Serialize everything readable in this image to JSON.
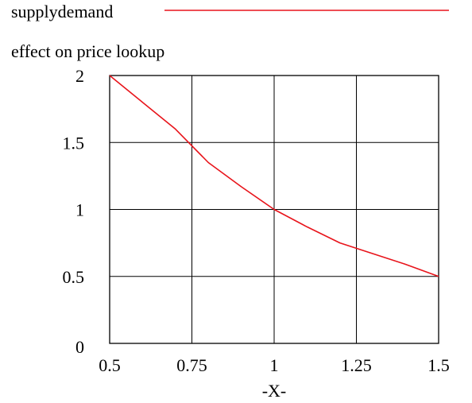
{
  "chart_data": {
    "type": "line",
    "title": "effect on price lookup",
    "xlabel": "-X-",
    "ylabel": "",
    "xlim": [
      0.5,
      1.5
    ],
    "ylim": [
      0,
      2
    ],
    "x_ticks": [
      0.5,
      0.75,
      1,
      1.25,
      1.5
    ],
    "x_tick_labels": [
      "0.5",
      "0.75",
      "1",
      "1.25",
      "1.5"
    ],
    "y_ticks": [
      0,
      0.5,
      1,
      1.5,
      2
    ],
    "y_tick_labels": [
      "0",
      "0.5",
      "1",
      "1.5",
      "2"
    ],
    "grid": true,
    "legend_position": "top",
    "series": [
      {
        "name": "supplydemand",
        "color": "#e8141b",
        "x": [
          0.5,
          0.6,
          0.7,
          0.8,
          0.9,
          1.0,
          1.1,
          1.2,
          1.3,
          1.4,
          1.5
        ],
        "y": [
          2.0,
          1.8,
          1.6,
          1.35,
          1.17,
          1.0,
          0.87,
          0.75,
          0.67,
          0.59,
          0.5
        ]
      }
    ]
  }
}
